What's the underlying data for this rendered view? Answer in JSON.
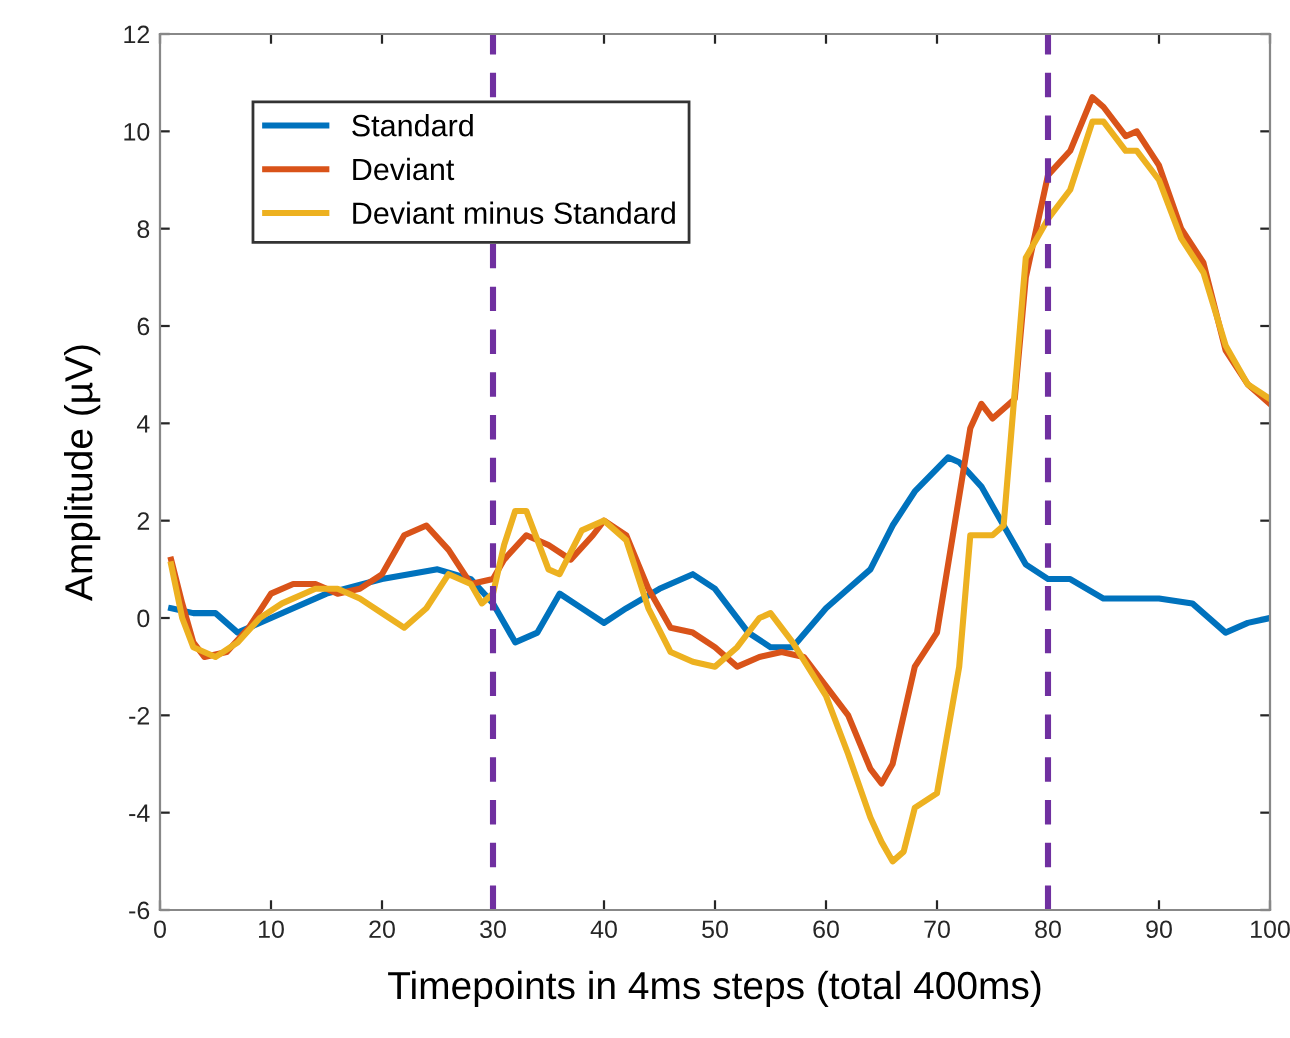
{
  "chart_data": {
    "type": "line",
    "xlabel": "Timepoints in 4ms steps (total 400ms)",
    "ylabel": "Amplitude (µV)",
    "xlim": [
      0,
      100
    ],
    "ylim": [
      -6,
      12
    ],
    "xticks": [
      0,
      10,
      20,
      30,
      40,
      50,
      60,
      70,
      80,
      90,
      100
    ],
    "yticks": [
      -6,
      -4,
      -2,
      0,
      2,
      4,
      6,
      8,
      10,
      12
    ],
    "legend": "top left",
    "grid": false,
    "series": [
      {
        "name": "Standard",
        "color": "#0072bd",
        "x": [
          1,
          3,
          5,
          7,
          10,
          15,
          20,
          25,
          28,
          30,
          32,
          34,
          36,
          38,
          40,
          42,
          45,
          48,
          50,
          53,
          55,
          57,
          60,
          62,
          64,
          66,
          68,
          71,
          72,
          74,
          76,
          78,
          80,
          82,
          85,
          88,
          90,
          93,
          96,
          98,
          100
        ],
        "values": [
          0.2,
          0.1,
          0.1,
          -0.3,
          0,
          0.5,
          0.8,
          1.0,
          0.8,
          0.3,
          -0.5,
          -0.3,
          0.5,
          0.2,
          -0.1,
          0.2,
          0.6,
          0.9,
          0.6,
          -0.3,
          -0.6,
          -0.6,
          0.2,
          0.6,
          1.0,
          1.9,
          2.6,
          3.3,
          3.2,
          2.7,
          1.9,
          1.1,
          0.8,
          0.8,
          0.4,
          0.4,
          0.4,
          0.3,
          -0.3,
          -0.1,
          0.0
        ]
      },
      {
        "name": "Deviant",
        "color": "#d95319",
        "x": [
          1,
          2,
          3,
          4,
          6,
          8,
          10,
          12,
          14,
          16,
          18,
          20,
          22,
          24,
          26,
          28,
          30,
          31,
          33,
          35,
          37,
          39,
          40,
          42,
          44,
          46,
          48,
          50,
          52,
          54,
          56,
          58,
          60,
          62,
          64,
          65,
          66,
          68,
          70,
          73,
          74,
          75,
          77,
          78,
          80,
          82,
          84,
          85,
          87,
          88,
          90,
          92,
          94,
          96,
          98,
          100
        ],
        "values": [
          1.2,
          0.3,
          -0.5,
          -0.8,
          -0.7,
          -0.2,
          0.5,
          0.7,
          0.7,
          0.5,
          0.6,
          0.9,
          1.7,
          1.9,
          1.4,
          0.7,
          0.8,
          1.2,
          1.7,
          1.5,
          1.2,
          1.7,
          2.0,
          1.7,
          0.6,
          -0.2,
          -0.3,
          -0.6,
          -1.0,
          -0.8,
          -0.7,
          -0.8,
          -1.4,
          -2.0,
          -3.1,
          -3.4,
          -3.0,
          -1.0,
          -0.3,
          3.9,
          4.4,
          4.1,
          4.5,
          7.0,
          9.1,
          9.6,
          10.7,
          10.5,
          9.9,
          10.0,
          9.3,
          8.0,
          7.3,
          5.5,
          4.8,
          4.4
        ]
      },
      {
        "name": "Deviant minus Standard",
        "color": "#edb120",
        "x": [
          1,
          2,
          3,
          5,
          7,
          9,
          11,
          14,
          16,
          18,
          20,
          22,
          24,
          26,
          28,
          29,
          30,
          31,
          32,
          33,
          34,
          35,
          36,
          38,
          40,
          42,
          44,
          46,
          48,
          50,
          52,
          54,
          55,
          57,
          60,
          62,
          64,
          65,
          66,
          67,
          68,
          70,
          72,
          73,
          75,
          76,
          78,
          80,
          82,
          84,
          85,
          87,
          88,
          90,
          92,
          94,
          96,
          98,
          100
        ],
        "values": [
          1.1,
          0,
          -0.6,
          -0.8,
          -0.5,
          0,
          0.3,
          0.6,
          0.6,
          0.4,
          0.1,
          -0.2,
          0.2,
          0.9,
          0.7,
          0.3,
          0.5,
          1.5,
          2.2,
          2.2,
          1.6,
          1.0,
          0.9,
          1.8,
          2.0,
          1.6,
          0.2,
          -0.7,
          -0.9,
          -1.0,
          -0.6,
          0,
          0.1,
          -0.5,
          -1.6,
          -2.8,
          -4.1,
          -4.6,
          -5.0,
          -4.8,
          -3.9,
          -3.6,
          -1.0,
          1.7,
          1.7,
          1.9,
          7.4,
          8.2,
          8.8,
          10.2,
          10.2,
          9.6,
          9.6,
          9.0,
          7.8,
          7.1,
          5.6,
          4.8,
          4.5
        ]
      }
    ],
    "ref_lines": [
      {
        "axis": "x",
        "value": 30,
        "color": "#7030a0",
        "line_style": "dashed"
      },
      {
        "axis": "x",
        "value": 80,
        "color": "#7030a0",
        "line_style": "dashed"
      }
    ]
  }
}
